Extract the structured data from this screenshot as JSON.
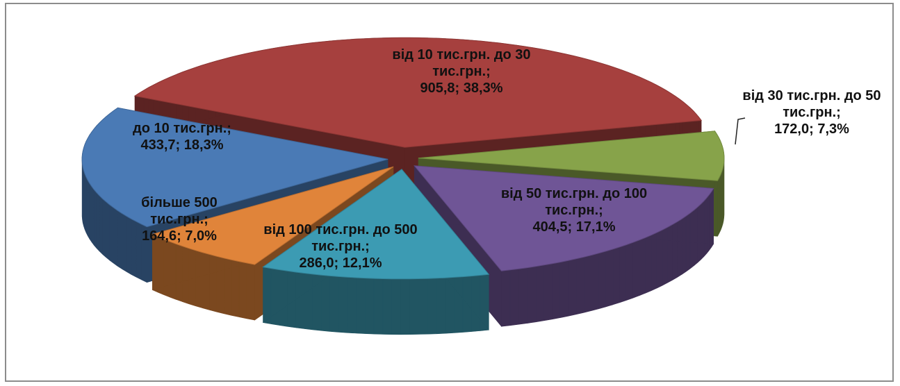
{
  "chart_data": {
    "type": "pie",
    "style": "3d-exploded",
    "categories": [
      "до 10 тис.грн.;",
      "від 10 тис.грн. до 30 тис.грн.;",
      "від 30 тис.грн. до 50 тис.грн.;",
      "від 50 тис.грн. до 100 тис.грн.;",
      "від 100 тис.грн. до 500 тис.грн.;",
      "більше 500 тис.грн.;"
    ],
    "values": [
      433.7,
      905.8,
      172.0,
      404.5,
      286.0,
      164.6
    ],
    "value_labels": [
      "433,7;",
      "905,8;",
      "172,0;",
      "404,5;",
      "286,0;",
      "164,6;"
    ],
    "percents": [
      18.3,
      38.3,
      7.3,
      17.1,
      12.1,
      7.0
    ],
    "percent_labels": [
      "18,3%",
      "38,3%",
      "7,3%",
      "17,1%",
      "12,1%",
      "7,0%"
    ],
    "colors": [
      "#4a7ab5",
      "#a6403e",
      "#87a34a",
      "#6f5596",
      "#3c9bb3",
      "#e0843a"
    ]
  }
}
